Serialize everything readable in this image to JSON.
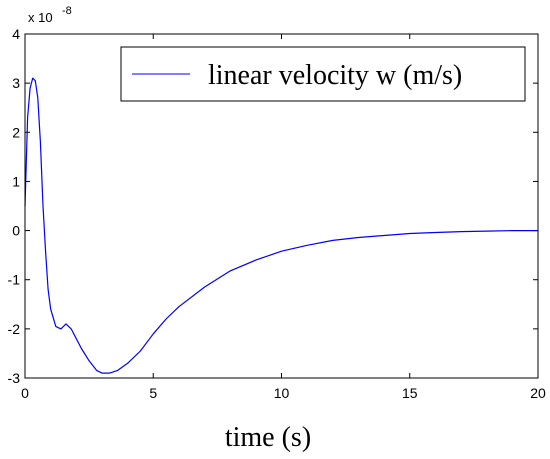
{
  "chart_data": {
    "type": "line",
    "xlabel": "time (s)",
    "ylabel": "",
    "xlim": [
      0,
      20
    ],
    "ylim": [
      -3,
      4
    ],
    "x_ticks": [
      "0",
      "5",
      "10",
      "15",
      "20"
    ],
    "y_ticks": [
      "-3",
      "-2",
      "-1",
      "0",
      "1",
      "2",
      "3",
      "4"
    ],
    "y_multiplier": {
      "base": "x 10",
      "exponent": "-8"
    },
    "legend": {
      "position": "top-right",
      "entries": [
        "linear velocity w (m/s)"
      ]
    },
    "grid": false,
    "series": [
      {
        "name": "linear velocity w (m/s)",
        "color": "#0000ff",
        "x": [
          0,
          0.1,
          0.2,
          0.3,
          0.4,
          0.5,
          0.6,
          0.7,
          0.8,
          0.9,
          1.0,
          1.2,
          1.4,
          1.6,
          1.8,
          2.0,
          2.2,
          2.5,
          2.8,
          3.0,
          3.3,
          3.6,
          4.0,
          4.5,
          5.0,
          5.5,
          6.0,
          7.0,
          8.0,
          9.0,
          10.0,
          11.0,
          12.0,
          13.0,
          14.0,
          15.0,
          16.0,
          17.0,
          18.0,
          19.0,
          20.0
        ],
        "y": [
          0.5,
          2.3,
          2.9,
          3.1,
          3.05,
          2.7,
          1.8,
          0.5,
          -0.4,
          -1.2,
          -1.6,
          -1.95,
          -2.0,
          -1.9,
          -2.0,
          -2.2,
          -2.4,
          -2.65,
          -2.85,
          -2.9,
          -2.9,
          -2.85,
          -2.7,
          -2.45,
          -2.1,
          -1.8,
          -1.55,
          -1.15,
          -0.82,
          -0.6,
          -0.42,
          -0.3,
          -0.2,
          -0.14,
          -0.1,
          -0.06,
          -0.04,
          -0.02,
          -0.01,
          0.0,
          0.0
        ]
      }
    ]
  }
}
